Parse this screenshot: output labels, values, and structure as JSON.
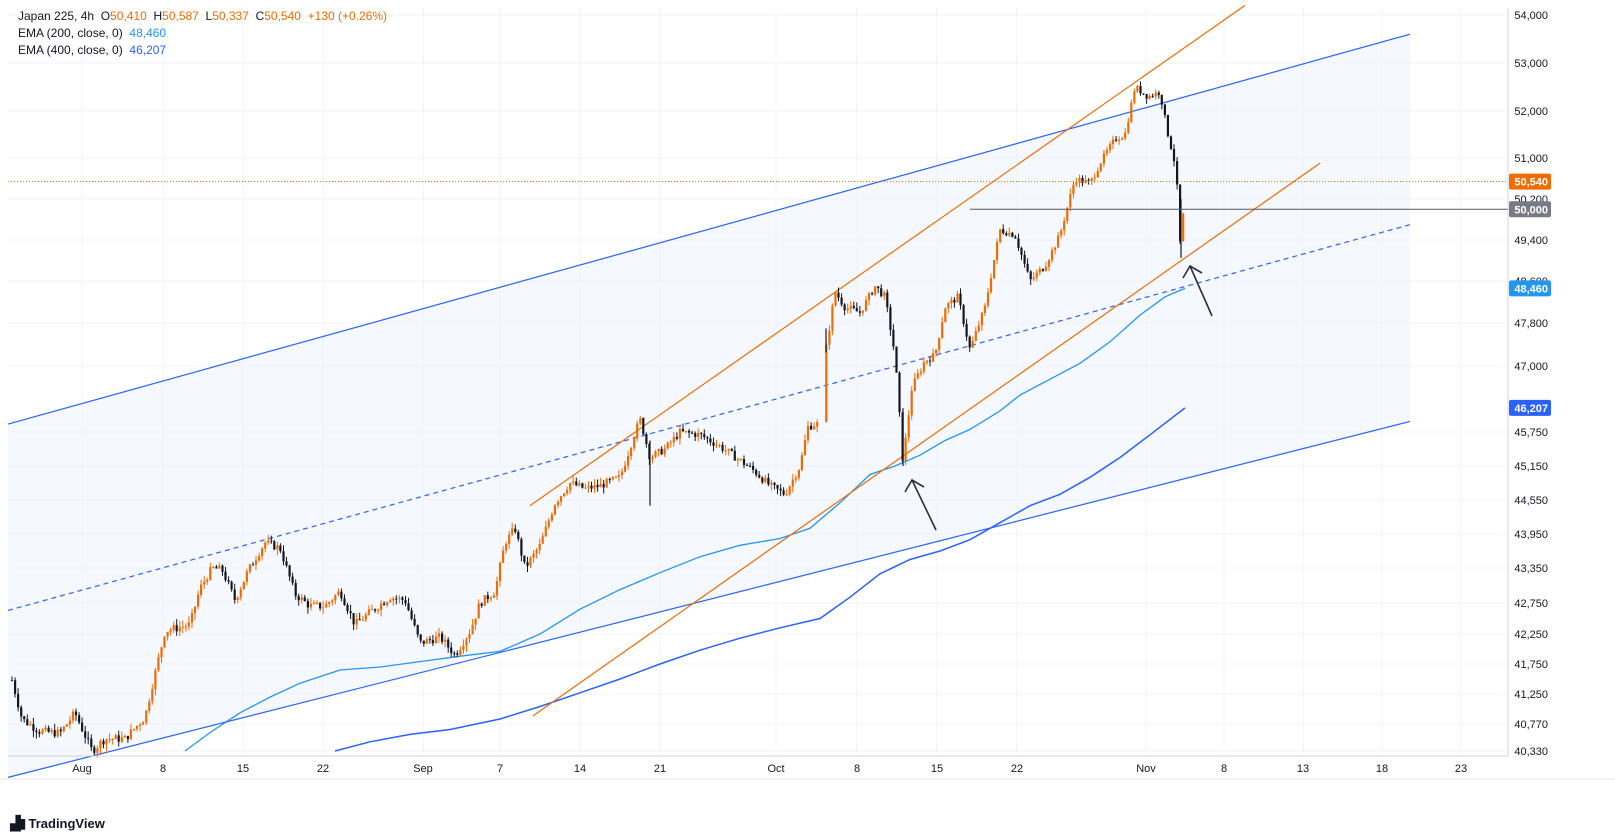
{
  "legend": {
    "symbol": "Japan 225, 4h",
    "o_label": "O",
    "o": "50,410",
    "h_label": "H",
    "h": "50,587",
    "l_label": "L",
    "l": "50,337",
    "c_label": "C",
    "c": "50,540",
    "change": "+130 (+0.26%)",
    "ema1_label": "EMA (200, close, 0)",
    "ema1_value": "48,460",
    "ema2_label": "EMA (400, close, 0)",
    "ema2_value": "46,207"
  },
  "brand": "TradingView",
  "colors": {
    "up": "#ef6c00",
    "down": "#131722",
    "ema1": "#2196f3",
    "ema2": "#2962ff",
    "channel": "#2962ff",
    "orange_line": "#ef6c00",
    "last_price": "#ef6c00",
    "level": "#787b86"
  },
  "chart_data": {
    "type": "candlestick",
    "x_ticks": [
      "Aug",
      "8",
      "15",
      "22",
      "Sep",
      "7",
      "14",
      "21",
      "Oct",
      "8",
      "15",
      "22",
      "Nov",
      "8",
      "13",
      "18",
      "23"
    ],
    "y_ticks": [
      "54,000",
      "53,000",
      "52,000",
      "51,000",
      "50,200",
      "49,400",
      "48,600",
      "47,800",
      "47,000",
      "45,750",
      "45,150",
      "44,550",
      "43,950",
      "43,350",
      "42,750",
      "42,250",
      "41,750",
      "41,250",
      "40,770",
      "40,330"
    ],
    "price_labels": [
      {
        "text": "50,540",
        "value": 50540,
        "color": "#ef6c00"
      },
      {
        "text": "50,000",
        "value": 50000,
        "color": "#787b86"
      },
      {
        "text": "48,460",
        "value": 48460,
        "color": "#2196f3"
      },
      {
        "text": "46,207",
        "value": 46207,
        "color": "#2962ff"
      }
    ],
    "horizontal_level": 50000,
    "last_price": 50540,
    "path_keypoints": [
      [
        12,
        41480
      ],
      [
        22,
        40850
      ],
      [
        40,
        40650
      ],
      [
        60,
        40620
      ],
      [
        75,
        40950
      ],
      [
        92,
        40330
      ],
      [
        105,
        40530
      ],
      [
        125,
        40530
      ],
      [
        145,
        40880
      ],
      [
        165,
        42300
      ],
      [
        190,
        42400
      ],
      [
        200,
        43000
      ],
      [
        212,
        43350
      ],
      [
        222,
        43320
      ],
      [
        235,
        42800
      ],
      [
        248,
        43300
      ],
      [
        265,
        43800
      ],
      [
        280,
        43700
      ],
      [
        295,
        42900
      ],
      [
        310,
        42700
      ],
      [
        325,
        42700
      ],
      [
        340,
        42950
      ],
      [
        355,
        42400
      ],
      [
        370,
        42600
      ],
      [
        390,
        42850
      ],
      [
        405,
        42800
      ],
      [
        420,
        42100
      ],
      [
        440,
        42200
      ],
      [
        455,
        41900
      ],
      [
        470,
        42300
      ],
      [
        480,
        42750
      ],
      [
        495,
        42950
      ],
      [
        505,
        43800
      ],
      [
        515,
        44050
      ],
      [
        525,
        43350
      ],
      [
        540,
        43750
      ],
      [
        555,
        44500
      ],
      [
        570,
        44850
      ],
      [
        585,
        44750
      ],
      [
        600,
        44800
      ],
      [
        620,
        44950
      ],
      [
        640,
        46000
      ],
      [
        650,
        45300
      ],
      [
        665,
        45450
      ],
      [
        680,
        45750
      ],
      [
        700,
        45700
      ],
      [
        720,
        45500
      ],
      [
        740,
        45250
      ],
      [
        755,
        45050
      ],
      [
        770,
        44800
      ],
      [
        785,
        44650
      ],
      [
        800,
        45150
      ],
      [
        808,
        45850
      ],
      [
        820,
        45920
      ],
      [
        826,
        47300
      ],
      [
        835,
        48400
      ],
      [
        845,
        48100
      ],
      [
        860,
        48000
      ],
      [
        875,
        48500
      ],
      [
        885,
        48300
      ],
      [
        895,
        47200
      ],
      [
        903,
        45200
      ],
      [
        912,
        46600
      ],
      [
        925,
        47100
      ],
      [
        935,
        47200
      ],
      [
        945,
        48100
      ],
      [
        958,
        48300
      ],
      [
        970,
        47300
      ],
      [
        985,
        48100
      ],
      [
        1000,
        49600
      ],
      [
        1015,
        49500
      ],
      [
        1030,
        48600
      ],
      [
        1045,
        48900
      ],
      [
        1060,
        49500
      ],
      [
        1075,
        50600
      ],
      [
        1090,
        50500
      ],
      [
        1100,
        50900
      ],
      [
        1115,
        51400
      ],
      [
        1125,
        51500
      ],
      [
        1135,
        52500
      ],
      [
        1148,
        52300
      ],
      [
        1160,
        52400
      ],
      [
        1168,
        51500
      ],
      [
        1176,
        50800
      ],
      [
        1181,
        49050
      ],
      [
        1185,
        50540
      ]
    ],
    "ema200_points": [
      [
        185,
        40330
      ],
      [
        210,
        40630
      ],
      [
        240,
        40950
      ],
      [
        270,
        41200
      ],
      [
        300,
        41430
      ],
      [
        340,
        41650
      ],
      [
        380,
        41700
      ],
      [
        420,
        41790
      ],
      [
        460,
        41880
      ],
      [
        500,
        41960
      ],
      [
        540,
        42250
      ],
      [
        580,
        42650
      ],
      [
        620,
        42980
      ],
      [
        660,
        43270
      ],
      [
        700,
        43550
      ],
      [
        740,
        43750
      ],
      [
        780,
        43870
      ],
      [
        810,
        44050
      ],
      [
        840,
        44500
      ],
      [
        870,
        45000
      ],
      [
        895,
        45150
      ],
      [
        920,
        45340
      ],
      [
        945,
        45600
      ],
      [
        970,
        45800
      ],
      [
        1000,
        46150
      ],
      [
        1020,
        46450
      ],
      [
        1050,
        46750
      ],
      [
        1080,
        47050
      ],
      [
        1110,
        47450
      ],
      [
        1140,
        47950
      ],
      [
        1165,
        48300
      ],
      [
        1185,
        48460
      ]
    ],
    "ema400_points": [
      [
        335,
        40330
      ],
      [
        370,
        40480
      ],
      [
        410,
        40600
      ],
      [
        450,
        40680
      ],
      [
        500,
        40850
      ],
      [
        540,
        41050
      ],
      [
        580,
        41270
      ],
      [
        620,
        41500
      ],
      [
        660,
        41750
      ],
      [
        700,
        41980
      ],
      [
        740,
        42180
      ],
      [
        780,
        42350
      ],
      [
        820,
        42500
      ],
      [
        850,
        42850
      ],
      [
        880,
        43250
      ],
      [
        910,
        43500
      ],
      [
        940,
        43650
      ],
      [
        970,
        43850
      ],
      [
        1000,
        44150
      ],
      [
        1030,
        44450
      ],
      [
        1060,
        44650
      ],
      [
        1090,
        44950
      ],
      [
        1120,
        45300
      ],
      [
        1150,
        45700
      ],
      [
        1185,
        46207
      ]
    ],
    "trendlines": [
      {
        "name": "upper-channel",
        "color": "#2962ff",
        "style": "solid",
        "points": [
          [
            8,
            45900
          ],
          [
            1410,
            53600
          ]
        ]
      },
      {
        "name": "lower-channel",
        "color": "#2962ff",
        "style": "solid",
        "points": [
          [
            8,
            39900
          ],
          [
            1410,
            45950
          ]
        ]
      },
      {
        "name": "mid-channel",
        "color": "#2962ff",
        "style": "dashed",
        "points": [
          [
            8,
            42630
          ],
          [
            1410,
            49700
          ]
        ]
      },
      {
        "name": "orange-upper",
        "color": "#ef6c00",
        "style": "solid",
        "points": [
          [
            530,
            44450
          ],
          [
            1245,
            54200
          ]
        ]
      },
      {
        "name": "orange-lower",
        "color": "#ef6c00",
        "style": "solid",
        "points": [
          [
            533,
            40900
          ],
          [
            1320,
            50900
          ]
        ]
      }
    ],
    "level_line": {
      "from_x": 970,
      "value": 50000
    }
  }
}
